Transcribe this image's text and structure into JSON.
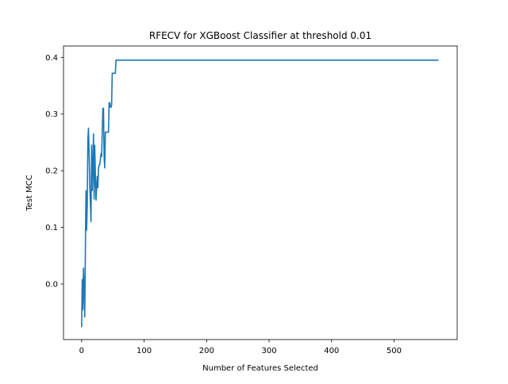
{
  "chart_data": {
    "type": "line",
    "title": "RFECV for XGBoost Classifier at threshold 0.01",
    "xlabel": "Number of Features Selected",
    "ylabel": "Test MCC",
    "xlim": [
      -29,
      601
    ],
    "ylim": [
      -0.098,
      0.42
    ],
    "x_ticks": [
      0,
      100,
      200,
      300,
      400,
      500
    ],
    "y_ticks": [
      0.0,
      0.1,
      0.2,
      0.3,
      0.4
    ],
    "y_tick_labels": [
      "0.0",
      "0.1",
      "0.2",
      "0.3",
      "0.4"
    ],
    "grid": false,
    "legend": "none",
    "series": [
      {
        "color": "#1f77b4",
        "x": [
          0,
          1,
          2,
          3,
          4,
          5,
          6,
          7,
          8,
          9,
          10,
          11,
          12,
          13,
          14,
          15,
          16,
          17,
          18,
          19,
          20,
          21,
          22,
          23,
          24,
          25,
          26,
          27,
          28,
          29,
          30,
          31,
          32,
          33,
          34,
          35,
          36,
          37,
          38,
          39,
          40,
          41,
          42,
          43,
          44,
          45,
          46,
          47,
          48,
          49,
          50,
          51,
          52,
          53,
          54,
          55,
          56,
          57,
          58,
          59,
          60,
          65,
          100,
          200,
          300,
          400,
          500,
          570
        ],
        "y": [
          -0.075,
          0.008,
          -0.045,
          0.028,
          -0.01,
          -0.058,
          0.06,
          0.165,
          0.095,
          0.14,
          0.255,
          0.275,
          0.23,
          0.175,
          0.145,
          0.11,
          0.245,
          0.165,
          0.21,
          0.265,
          0.15,
          0.245,
          0.195,
          0.148,
          0.168,
          0.19,
          0.17,
          0.205,
          0.21,
          0.21,
          0.22,
          0.23,
          0.225,
          0.268,
          0.31,
          0.31,
          0.225,
          0.205,
          0.268,
          0.268,
          0.268,
          0.268,
          0.268,
          0.268,
          0.32,
          0.32,
          0.312,
          0.312,
          0.316,
          0.372,
          0.372,
          0.372,
          0.372,
          0.372,
          0.372,
          0.395,
          0.395,
          0.395,
          0.395,
          0.395,
          0.395,
          0.395,
          0.395,
          0.395,
          0.395,
          0.395,
          0.395,
          0.395
        ]
      }
    ]
  }
}
